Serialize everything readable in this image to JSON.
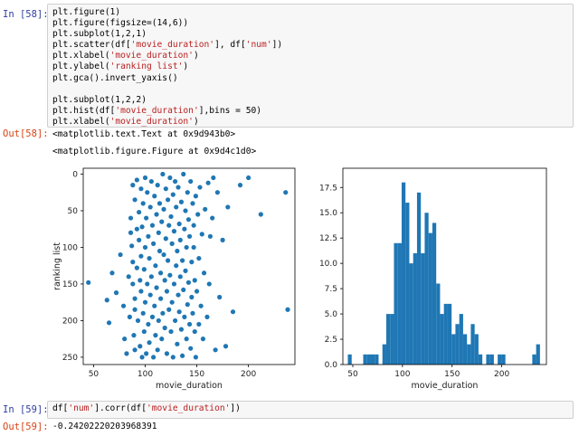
{
  "cells": {
    "in58": {
      "prompt": "In [58]:",
      "lines": [
        [
          {
            "t": "plt.figure(1)"
          }
        ],
        [
          {
            "t": "plt.figure(figsize=(14,6))"
          }
        ],
        [
          {
            "t": "plt.subplot(1,2,1)"
          }
        ],
        [
          {
            "t": "plt.scatter(df["
          },
          {
            "t": "'movie_duration'",
            "s": true
          },
          {
            "t": "], df["
          },
          {
            "t": "'num'",
            "s": true
          },
          {
            "t": "])"
          }
        ],
        [
          {
            "t": "plt.xlabel("
          },
          {
            "t": "'movie_duration'",
            "s": true
          },
          {
            "t": ")"
          }
        ],
        [
          {
            "t": "plt.ylabel("
          },
          {
            "t": "'ranking list'",
            "s": true
          },
          {
            "t": ")"
          }
        ],
        [
          {
            "t": "plt.gca().invert_yaxis()"
          }
        ],
        [
          {
            "t": ""
          }
        ],
        [
          {
            "t": "plt.subplot(1,2,2)"
          }
        ],
        [
          {
            "t": "plt.hist(df["
          },
          {
            "t": "'movie_duration'",
            "s": true
          },
          {
            "t": "],bins = 50)"
          }
        ],
        [
          {
            "t": "plt.xlabel("
          },
          {
            "t": "'movie_duration'",
            "s": true
          },
          {
            "t": ")"
          }
        ]
      ]
    },
    "out58": {
      "prompt": "Out[58]:",
      "line1": "<matplotlib.text.Text at 0x9d943b0>",
      "line2": "<matplotlib.figure.Figure at 0x9d4c1d0>"
    },
    "in59": {
      "prompt": "In [59]:",
      "lines": [
        [
          {
            "t": "df["
          },
          {
            "t": "'num'",
            "s": true
          },
          {
            "t": "].corr(df["
          },
          {
            "t": "'movie_duration'",
            "s": true
          },
          {
            "t": "])"
          }
        ]
      ]
    },
    "out59": {
      "prompt": "Out[59]:",
      "value": "-0.24202220203968391"
    }
  },
  "colors": {
    "marker": "#1f77b4",
    "in_prompt": "#303f9f",
    "out_prompt": "#d84315",
    "string": "#ba2121"
  },
  "chart_data": [
    {
      "type": "scatter",
      "xlabel": "movie_duration",
      "ylabel": "ranking list",
      "xlim": [
        40,
        245
      ],
      "ylim": [
        260,
        -8
      ],
      "y_inverted": true,
      "xticks": [
        50,
        100,
        150,
        200
      ],
      "yticks": [
        0,
        50,
        100,
        150,
        200,
        250
      ],
      "points": [
        [
          45,
          148
        ],
        [
          63,
          172
        ],
        [
          65,
          203
        ],
        [
          68,
          135
        ],
        [
          72,
          162
        ],
        [
          76,
          110
        ],
        [
          79,
          180
        ],
        [
          80,
          225
        ],
        [
          82,
          245
        ],
        [
          84,
          140
        ],
        [
          85,
          195
        ],
        [
          86,
          60
        ],
        [
          86,
          80
        ],
        [
          87,
          98
        ],
        [
          88,
          15
        ],
        [
          88,
          120
        ],
        [
          88,
          150
        ],
        [
          89,
          220
        ],
        [
          90,
          35
        ],
        [
          90,
          170
        ],
        [
          90,
          185
        ],
        [
          90,
          240
        ],
        [
          92,
          8
        ],
        [
          92,
          75
        ],
        [
          92,
          128
        ],
        [
          93,
          200
        ],
        [
          94,
          52
        ],
        [
          94,
          90
        ],
        [
          95,
          145
        ],
        [
          95,
          235
        ],
        [
          96,
          20
        ],
        [
          96,
          112
        ],
        [
          96,
          160
        ],
        [
          97,
          250
        ],
        [
          97,
          72
        ],
        [
          98,
          40
        ],
        [
          98,
          190
        ],
        [
          99,
          130
        ],
        [
          99,
          215
        ],
        [
          100,
          5
        ],
        [
          100,
          100
        ],
        [
          100,
          175
        ],
        [
          101,
          60
        ],
        [
          101,
          245
        ],
        [
          102,
          25
        ],
        [
          102,
          150
        ],
        [
          103,
          85
        ],
        [
          103,
          205
        ],
        [
          104,
          115
        ],
        [
          104,
          230
        ],
        [
          105,
          45
        ],
        [
          105,
          165
        ],
        [
          106,
          10
        ],
        [
          106,
          140
        ],
        [
          107,
          70
        ],
        [
          107,
          195
        ],
        [
          108,
          250
        ],
        [
          108,
          95
        ],
        [
          109,
          30
        ],
        [
          109,
          180
        ],
        [
          110,
          125
        ],
        [
          110,
          220
        ],
        [
          111,
          55
        ],
        [
          111,
          155
        ],
        [
          112,
          15
        ],
        [
          112,
          240
        ],
        [
          113,
          80
        ],
        [
          113,
          200
        ],
        [
          114,
          105
        ],
        [
          114,
          40
        ],
        [
          115,
          170
        ],
        [
          115,
          135
        ],
        [
          116,
          65
        ],
        [
          116,
          225
        ],
        [
          117,
          0
        ],
        [
          117,
          190
        ],
        [
          118,
          110
        ],
        [
          118,
          48
        ],
        [
          119,
          145
        ],
        [
          119,
          210
        ],
        [
          120,
          20
        ],
        [
          120,
          88
        ],
        [
          121,
          160
        ],
        [
          121,
          245
        ],
        [
          122,
          35
        ],
        [
          122,
          118
        ],
        [
          123,
          185
        ],
        [
          123,
          70
        ],
        [
          124,
          5
        ],
        [
          124,
          138
        ],
        [
          125,
          215
        ],
        [
          125,
          58
        ],
        [
          126,
          95
        ],
        [
          126,
          175
        ],
        [
          127,
          28
        ],
        [
          127,
          250
        ],
        [
          128,
          150
        ],
        [
          128,
          78
        ],
        [
          129,
          10
        ],
        [
          129,
          200
        ],
        [
          130,
          125
        ],
        [
          130,
          45
        ],
        [
          131,
          232
        ],
        [
          131,
          105
        ],
        [
          132,
          165
        ],
        [
          132,
          18
        ],
        [
          133,
          68
        ],
        [
          133,
          188
        ],
        [
          134,
          140
        ],
        [
          134,
          90
        ],
        [
          135,
          38
        ],
        [
          135,
          212
        ],
        [
          136,
          118
        ],
        [
          136,
          248
        ],
        [
          137,
          0
        ],
        [
          137,
          158
        ],
        [
          138,
          75
        ],
        [
          138,
          195
        ],
        [
          139,
          50
        ],
        [
          139,
          132
        ],
        [
          140,
          225
        ],
        [
          140,
          100
        ],
        [
          141,
          25
        ],
        [
          141,
          178
        ],
        [
          142,
          148
        ],
        [
          142,
          62
        ],
        [
          143,
          205
        ],
        [
          143,
          85
        ],
        [
          144,
          10
        ],
        [
          144,
          238
        ],
        [
          145,
          120
        ],
        [
          145,
          168
        ],
        [
          146,
          40
        ],
        [
          146,
          190
        ],
        [
          147,
          100
        ],
        [
          147,
          70
        ],
        [
          148,
          215
        ],
        [
          148,
          145
        ],
        [
          149,
          30
        ],
        [
          149,
          250
        ],
        [
          150,
          160
        ],
        [
          151,
          55
        ],
        [
          152,
          205
        ],
        [
          152,
          115
        ],
        [
          153,
          18
        ],
        [
          154,
          180
        ],
        [
          155,
          82
        ],
        [
          156,
          225
        ],
        [
          157,
          135
        ],
        [
          158,
          48
        ],
        [
          160,
          195
        ],
        [
          161,
          12
        ],
        [
          162,
          150
        ],
        [
          163,
          85
        ],
        [
          165,
          60
        ],
        [
          166,
          5
        ],
        [
          168,
          240
        ],
        [
          170,
          25
        ],
        [
          172,
          168
        ],
        [
          175,
          90
        ],
        [
          178,
          235
        ],
        [
          180,
          45
        ],
        [
          185,
          188
        ],
        [
          192,
          15
        ],
        [
          200,
          5
        ],
        [
          212,
          55
        ],
        [
          236,
          25
        ],
        [
          238,
          185
        ]
      ]
    },
    {
      "type": "bar",
      "subtype": "histogram",
      "bins": 50,
      "xlabel": "movie_duration",
      "xlim": [
        40,
        245
      ],
      "ylim": [
        0,
        19.4
      ],
      "xticks": [
        50,
        100,
        150,
        200
      ],
      "yticks": [
        0.0,
        2.5,
        5.0,
        7.5,
        10.0,
        12.5,
        15.0,
        17.5
      ],
      "bin_start": 45,
      "bin_width": 3.87,
      "values": [
        1,
        0,
        0,
        0,
        1,
        1,
        1,
        1,
        0,
        2,
        5,
        5,
        12,
        12,
        18,
        16,
        10,
        11,
        17,
        11,
        15,
        13,
        14,
        8,
        5,
        6,
        6,
        3,
        4,
        5,
        3,
        2,
        4,
        3,
        1,
        0,
        1,
        1,
        0,
        1,
        1,
        0,
        0,
        0,
        0,
        0,
        0,
        0,
        1,
        2
      ]
    }
  ]
}
